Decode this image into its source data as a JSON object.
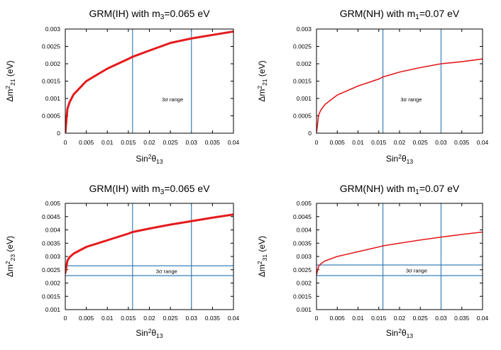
{
  "colors": {
    "curve": "#e41a1c",
    "range_lines": "#3b80b8",
    "frame": "#000000"
  },
  "chart_data": [
    {
      "type": "line",
      "title_main": "GRM(IH) with m",
      "title_sub": "3",
      "title_tail": "=0.065 eV",
      "xlabel_main": "Sin",
      "xlabel_sup": "2",
      "xlabel_theta": "θ",
      "xlabel_sub": "13",
      "ylabel_main": "Δm",
      "ylabel_sup": "2",
      "ylabel_sub": "21",
      "ylabel_tail": " (eV)",
      "xlim": [
        0,
        0.04
      ],
      "ylim": [
        0,
        0.003
      ],
      "xticks": [
        "0",
        "0.005",
        "0.01",
        "0.015",
        "0.02",
        "0.025",
        "0.03",
        "0.035",
        "0.04"
      ],
      "yticks": [
        "0",
        "0.0005",
        "0.001",
        "0.0015",
        "0.002",
        "0.0025",
        "0.003"
      ],
      "vlines": [
        0.016,
        0.03
      ],
      "hlines": [],
      "annotation": {
        "text": "3σ range",
        "x": 0.0255,
        "y": 0.00098
      },
      "curve_width": 3,
      "series": [
        {
          "x": [
            0,
            0.0005,
            0.001,
            0.002,
            0.005,
            0.01,
            0.015,
            0.016,
            0.02,
            0.025,
            0.03,
            0.035,
            0.04
          ],
          "y": [
            0,
            0.000698,
            0.000886,
            0.00112,
            0.0015,
            0.00186,
            0.00214,
            0.0022,
            0.00238,
            0.0026,
            0.00273,
            0.00283,
            0.00293
          ]
        }
      ]
    },
    {
      "type": "line",
      "title_main": "GRM(NH) with m",
      "title_sub": "1",
      "title_tail": "=0.07 eV",
      "xlabel_main": "Sin",
      "xlabel_sup": "2",
      "xlabel_theta": "θ",
      "xlabel_sub": "13",
      "ylabel_main": "Δm",
      "ylabel_sup": "2",
      "ylabel_sub": "21",
      "ylabel_tail": " (eV)",
      "xlim": [
        0,
        0.04
      ],
      "ylim": [
        0,
        0.003
      ],
      "xticks": [
        "0",
        "0.005",
        "0.01",
        "0.015",
        "0.02",
        "0.025",
        "0.03",
        "0.035",
        "0.04"
      ],
      "yticks": [
        "0",
        "0.0005",
        "0.001",
        "0.0015",
        "0.002",
        "0.0025",
        "0.003"
      ],
      "vlines": [
        0.016,
        0.03
      ],
      "hlines": [],
      "annotation": {
        "text": "3σ range",
        "x": 0.0228,
        "y": 0.00098
      },
      "curve_width": 1.6,
      "series": [
        {
          "x": [
            0,
            0.0005,
            0.001,
            0.002,
            0.005,
            0.01,
            0.015,
            0.016,
            0.02,
            0.025,
            0.03,
            0.035,
            0.04
          ],
          "y": [
            0,
            0.00052,
            0.000656,
            0.000823,
            0.0011,
            0.00136,
            0.00156,
            0.00162,
            0.00176,
            0.00189,
            0.002,
            0.00206,
            0.00214
          ]
        }
      ]
    },
    {
      "type": "line",
      "title_main": "GRM(IH) with m",
      "title_sub": "3",
      "title_tail": "=0.065 eV",
      "xlabel_main": "Sin",
      "xlabel_sup": "2",
      "xlabel_theta": "θ",
      "xlabel_sub": "13",
      "ylabel_main": "Δm",
      "ylabel_sup": "2",
      "ylabel_sub": "23",
      "ylabel_tail": " (eV)",
      "xlim": [
        0,
        0.04
      ],
      "ylim": [
        0.001,
        0.005
      ],
      "xticks": [
        "0",
        "0.005",
        "0.01",
        "0.015",
        "0.02",
        "0.025",
        "0.03",
        "0.035",
        "0.04"
      ],
      "yticks": [
        "0.001",
        "0.0015",
        "0.002",
        "0.0025",
        "0.003",
        "0.0035",
        "0.004",
        "0.0045",
        "0.005"
      ],
      "vlines": [
        0.016,
        0.03
      ],
      "hlines": [
        0.00228,
        0.00265
      ],
      "annotation": {
        "text": "3σ range",
        "x": 0.0241,
        "y": 0.00246
      },
      "curve_width": 3,
      "series": [
        {
          "x": [
            0,
            0.0005,
            0.001,
            0.002,
            0.005,
            0.01,
            0.015,
            0.016,
            0.02,
            0.025,
            0.03,
            0.035,
            0.04
          ],
          "y": [
            0.00238,
            0.00284,
            0.00297,
            0.00311,
            0.00336,
            0.00361,
            0.00386,
            0.00392,
            0.00405,
            0.0042,
            0.00433,
            0.00446,
            0.00458
          ]
        }
      ]
    },
    {
      "type": "line",
      "title_main": "GRM(NH) with m",
      "title_sub": "1",
      "title_tail": "=0.07 eV",
      "xlabel_main": "Sin",
      "xlabel_sup": "2",
      "xlabel_theta": "θ",
      "xlabel_sub": "13",
      "ylabel_main": "Δm",
      "ylabel_sup": "2",
      "ylabel_sub": "31",
      "ylabel_tail": " (eV)",
      "xlim": [
        0,
        0.04
      ],
      "ylim": [
        0.001,
        0.005
      ],
      "xticks": [
        "0",
        "0.005",
        "0.01",
        "0.015",
        "0.02",
        "0.025",
        "0.03",
        "0.035",
        "0.04"
      ],
      "yticks": [
        "0.001",
        "0.0015",
        "0.002",
        "0.0025",
        "0.003",
        "0.0035",
        "0.004",
        "0.0045",
        "0.005"
      ],
      "vlines": [
        0.016,
        0.03
      ],
      "hlines": [
        0.00228,
        0.00268
      ],
      "annotation": {
        "text": "3σ range",
        "x": 0.0241,
        "y": 0.00248
      },
      "curve_width": 1.6,
      "series": [
        {
          "x": [
            0,
            0.0005,
            0.001,
            0.002,
            0.005,
            0.01,
            0.015,
            0.016,
            0.02,
            0.025,
            0.03,
            0.035,
            0.04
          ],
          "y": [
            0.0023,
            0.00263,
            0.00272,
            0.00283,
            0.003,
            0.00318,
            0.00336,
            0.0034,
            0.0035,
            0.00362,
            0.00373,
            0.00383,
            0.00392
          ]
        }
      ]
    }
  ]
}
